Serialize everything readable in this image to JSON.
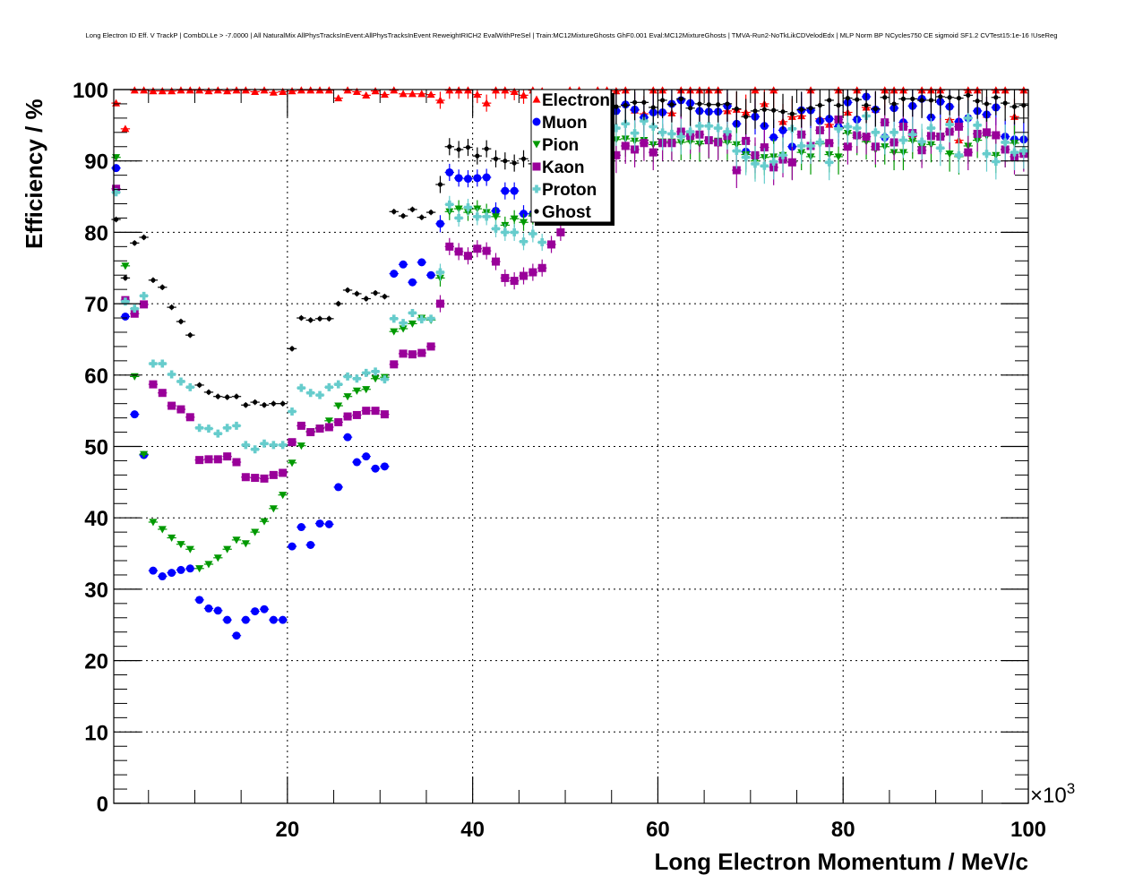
{
  "chart_data": {
    "type": "scatter",
    "title": "Long Electron ID Eff. V TrackP | CombDLLe > -7.0000 | All NaturalMix AllPhysTracksInEvent:AllPhysTracksInEvent ReweightRICH2 EvalWithPreSel | Train:MC12MixtureGhosts GhF0.001 Eval:MC12MixtureGhosts | TMVA-Run2-NoTkLikCDVelodEdx | MLP Norm BP NCycles750 CE sigmoid SF1.2 CVTest15:1e-16 !UseReg",
    "xlabel": "Long Electron Momentum / MeV/c",
    "ylabel": "Efficiency / %",
    "x_multiplier_label": "×10",
    "x_multiplier_exp": "3",
    "xlim": [
      1.25,
      100
    ],
    "ylim": [
      0,
      100
    ],
    "x_ticks": [
      "20",
      "40",
      "60",
      "80",
      "100"
    ],
    "y_ticks": [
      "0",
      "10",
      "20",
      "30",
      "40",
      "50",
      "60",
      "70",
      "80",
      "90",
      "100"
    ],
    "grid": true,
    "legend_position": "top-center",
    "x_first": 1.5,
    "x_step": 1,
    "x_bin_half_width": 0.5,
    "yerr_by_range": [
      [
        1,
        36,
        0.4
      ],
      [
        36,
        55,
        1.2
      ],
      [
        55,
        100,
        2.5
      ]
    ],
    "series": [
      {
        "name": "Electron",
        "color": "#ff0000",
        "marker": "triangle-up",
        "values": [
          98.1,
          94.5,
          99.9,
          99.9,
          99.8,
          99.8,
          99.8,
          99.9,
          99.9,
          99.9,
          99.8,
          99.9,
          99.8,
          99.9,
          99.9,
          99.7,
          99.9,
          99.6,
          99.7,
          99.8,
          99.9,
          99.9,
          99.9,
          99.9,
          98.8,
          99.9,
          99.7,
          99.2,
          99.8,
          99.3,
          99.9,
          99.4,
          99.4,
          99.4,
          99.3,
          98.5,
          99.9,
          99.9,
          99.9,
          99.3,
          98.1,
          99.9,
          99.9,
          99.7,
          99.2,
          99.9,
          99.8,
          99.0,
          98.8,
          99.9,
          99.9,
          98.0,
          99.9,
          99.9,
          99.8,
          99.9,
          97.1,
          96.6,
          99.9,
          99.9,
          96.7,
          99.9,
          99.9,
          99.9,
          99.9,
          99.9,
          97.0,
          97.2,
          96.8,
          99.9,
          98.0,
          99.9,
          95.5,
          96.2,
          96.3,
          99.9,
          95.9,
          95.1,
          99.9,
          96.8,
          99.9,
          97.5,
          97.2,
          99.9,
          99.9,
          99.9,
          93.5,
          99.9,
          99.9,
          99.9,
          95.8,
          92.9,
          99.9,
          99.9,
          96.5,
          99.9,
          99.9,
          96.2,
          99.9
        ]
      },
      {
        "name": "Muon",
        "color": "#0000ff",
        "marker": "circle",
        "values": [
          89.0,
          68.2,
          54.5,
          48.8,
          32.6,
          31.8,
          32.3,
          32.7,
          32.9,
          28.5,
          27.3,
          27.0,
          25.7,
          23.5,
          25.7,
          26.9,
          27.2,
          25.7,
          25.7,
          36.0,
          38.7,
          36.2,
          39.2,
          39.1,
          44.3,
          51.3,
          47.8,
          48.6,
          46.9,
          47.2,
          74.2,
          75.5,
          73.0,
          75.8,
          74.0,
          81.2,
          88.4,
          87.6,
          87.5,
          87.6,
          87.7,
          83.0,
          85.8,
          85.8,
          82.6,
          82.6,
          83.5,
          88.0,
          90.5,
          91.5,
          93.0,
          94.0,
          95.5,
          96.5,
          97.0,
          97.9,
          97.2,
          96.1,
          96.8,
          96.8,
          98.0,
          98.5,
          98.1,
          97.0,
          96.9,
          96.9,
          97.7,
          95.2,
          91.3,
          96.2,
          94.9,
          93.3,
          94.3,
          92.0,
          97.1,
          97.1,
          95.6,
          95.9,
          94.8,
          98.2,
          95.8,
          99.0,
          97.2,
          93.3,
          97.4,
          95.4,
          97.7,
          98.7,
          96.1,
          98.3,
          97.6,
          95.5,
          96.0,
          97.0,
          96.5,
          97.5,
          93.4,
          93.0,
          93.0
        ]
      },
      {
        "name": "Pion",
        "color": "#009900",
        "marker": "triangle-down",
        "values": [
          90.5,
          75.3,
          59.8,
          48.9,
          39.4,
          38.4,
          37.2,
          36.3,
          35.6,
          32.9,
          33.5,
          34.4,
          35.6,
          36.9,
          36.4,
          38.0,
          39.5,
          41.3,
          43.2,
          47.7,
          50.1,
          52.1,
          52.6,
          53.6,
          55.7,
          57.0,
          57.8,
          58.0,
          59.5,
          59.7,
          66.1,
          66.5,
          67.2,
          68.0,
          67.7,
          73.6,
          82.9,
          83.3,
          82.8,
          83.3,
          82.8,
          82.2,
          81.0,
          81.9,
          81.4,
          82.3,
          83.0,
          85.0,
          87.0,
          88.0,
          89.0,
          90.5,
          91.5,
          92.5,
          93.0,
          93.1,
          92.8,
          92.9,
          92.3,
          92.7,
          92.7,
          92.6,
          92.7,
          92.4,
          92.8,
          92.8,
          92.6,
          92.3,
          90.9,
          90.0,
          90.5,
          90.6,
          90.8,
          89.9,
          91.2,
          90.6,
          92.4,
          90.9,
          90.6,
          93.9,
          93.3,
          92.7,
          91.6,
          92.0,
          91.2,
          91.2,
          92.8,
          92.0,
          92.3,
          93.5,
          91.0,
          90.6,
          92.1,
          92.9,
          93.5,
          90.8,
          91.6,
          92.5,
          91.2
        ]
      },
      {
        "name": "Kaon",
        "color": "#990099",
        "marker": "square",
        "values": [
          86.1,
          70.5,
          68.6,
          69.9,
          58.7,
          57.5,
          55.7,
          55.2,
          54.1,
          48.1,
          48.2,
          48.2,
          48.6,
          47.8,
          45.7,
          45.6,
          45.5,
          46.0,
          46.3,
          50.6,
          52.9,
          52.0,
          52.5,
          52.7,
          53.4,
          54.2,
          54.4,
          55.0,
          55.0,
          54.5,
          61.5,
          63.0,
          62.9,
          63.1,
          64.0,
          70.0,
          78.0,
          77.3,
          76.7,
          77.7,
          77.4,
          75.9,
          73.6,
          73.2,
          73.9,
          74.4,
          75.0,
          78.3,
          80.0,
          83.0,
          85.0,
          87.0,
          88.0,
          89.0,
          90.8,
          92.1,
          91.6,
          92.5,
          91.2,
          92.5,
          92.5,
          94.1,
          93.5,
          93.7,
          92.9,
          92.6,
          93.5,
          88.7,
          92.8,
          90.8,
          91.9,
          89.1,
          90.2,
          89.8,
          93.7,
          92.1,
          94.3,
          92.5,
          95.8,
          92.0,
          93.6,
          93.4,
          92.0,
          95.4,
          92.6,
          94.8,
          93.9,
          91.5,
          93.5,
          93.4,
          94.1,
          94.8,
          91.2,
          93.8,
          94.0,
          93.6,
          91.6,
          90.6,
          91.0
        ]
      },
      {
        "name": "Proton",
        "color": "#66cccc",
        "marker": "cross",
        "values": [
          85.6,
          70.3,
          69.3,
          71.1,
          61.6,
          61.6,
          60.1,
          59.1,
          58.3,
          52.6,
          52.5,
          51.8,
          52.6,
          52.9,
          50.2,
          49.6,
          50.4,
          50.2,
          50.2,
          54.9,
          58.2,
          57.5,
          57.2,
          58.3,
          58.7,
          59.8,
          59.5,
          60.3,
          60.5,
          59.4,
          67.9,
          67.3,
          68.7,
          67.8,
          67.9,
          74.4,
          83.9,
          82.0,
          83.5,
          82.2,
          82.2,
          80.5,
          80.0,
          80.0,
          78.7,
          79.8,
          78.6,
          83.0,
          86.0,
          88.0,
          89.0,
          90.0,
          91.0,
          92.0,
          94.6,
          95.2,
          93.9,
          95.6,
          94.8,
          94.0,
          93.8,
          93.4,
          94.1,
          94.9,
          94.9,
          94.6,
          94.1,
          91.4,
          90.5,
          89.6,
          89.3,
          89.9,
          90.8,
          94.5,
          92.1,
          92.1,
          92.6,
          89.8,
          94.5,
          94.8,
          94.6,
          96.3,
          94.0,
          93.4,
          94.0,
          92.9,
          93.7,
          92.7,
          94.6,
          91.8,
          95.1,
          90.8,
          96.0,
          95.0,
          91.0,
          89.9,
          92.6,
          91.2,
          91.4
        ]
      },
      {
        "name": "Ghost",
        "color": "#000000",
        "marker": "small-circle",
        "values": [
          81.8,
          73.6,
          78.5,
          79.3,
          73.3,
          72.3,
          69.5,
          67.5,
          65.6,
          58.6,
          57.6,
          57.0,
          56.9,
          57.0,
          55.8,
          56.2,
          55.8,
          56.0,
          56.0,
          63.7,
          68.0,
          67.7,
          67.9,
          67.9,
          70.0,
          71.9,
          71.4,
          70.7,
          71.5,
          71.0,
          82.9,
          82.3,
          83.2,
          82.1,
          82.8,
          86.7,
          92.0,
          91.6,
          91.9,
          90.7,
          91.7,
          90.3,
          90.0,
          89.7,
          90.3,
          89.6,
          92.0,
          94.0,
          95.0,
          96.0,
          97.0,
          97.5,
          98.0,
          98.0,
          97.6,
          97.8,
          98.2,
          98.2,
          97.5,
          98.5,
          97.9,
          98.7,
          97.4,
          98.0,
          97.9,
          97.9,
          98.0,
          97.3,
          96.2,
          97.0,
          97.2,
          97.1,
          96.9,
          96.6,
          97.2,
          97.4,
          97.8,
          98.5,
          97.8,
          98.8,
          98.6,
          97.8,
          97.3,
          98.9,
          98.0,
          98.7,
          98.7,
          98.5,
          98.5,
          99.0,
          98.9,
          98.8,
          99.2,
          98.4,
          98.0,
          98.9,
          98.1,
          97.6,
          97.8
        ]
      }
    ]
  }
}
